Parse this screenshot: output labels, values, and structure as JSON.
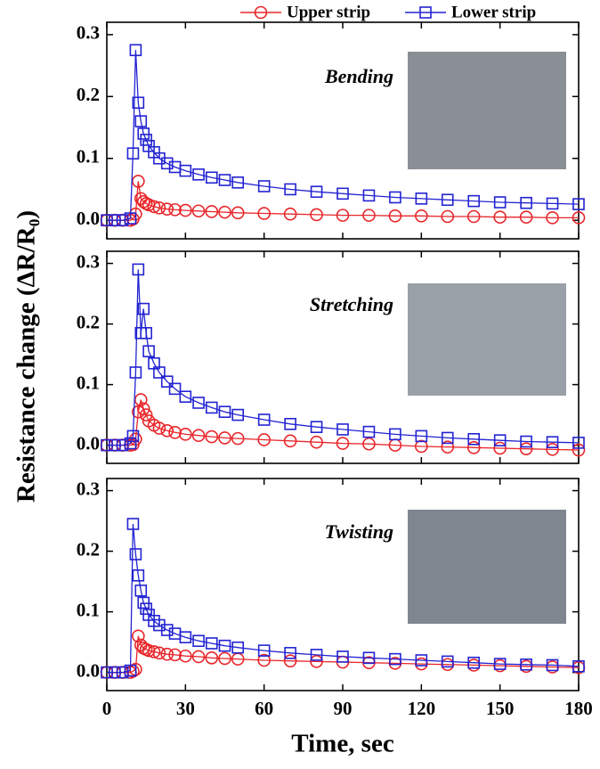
{
  "chart_data": [
    {
      "type": "line",
      "annotation": "Bending",
      "x": [
        0,
        3,
        6,
        9,
        10,
        11,
        12,
        13,
        14,
        15,
        16,
        18,
        20,
        23,
        26,
        30,
        35,
        40,
        45,
        50,
        60,
        70,
        80,
        90,
        100,
        110,
        120,
        130,
        140,
        150,
        160,
        170,
        180
      ],
      "series": [
        {
          "name": "Upper strip",
          "color": "#e8262a",
          "marker": "circle",
          "values": [
            0,
            0,
            0,
            0,
            0.002,
            0.01,
            0.063,
            0.035,
            0.03,
            0.027,
            0.025,
            0.022,
            0.02,
            0.018,
            0.017,
            0.016,
            0.015,
            0.014,
            0.013,
            0.012,
            0.011,
            0.01,
            0.009,
            0.008,
            0.008,
            0.007,
            0.007,
            0.006,
            0.006,
            0.005,
            0.005,
            0.004,
            0.004
          ]
        },
        {
          "name": "Lower strip",
          "color": "#2323d2",
          "marker": "square",
          "values": [
            0,
            0,
            0,
            0.003,
            0.108,
            0.275,
            0.19,
            0.16,
            0.14,
            0.13,
            0.12,
            0.11,
            0.1,
            0.092,
            0.086,
            0.08,
            0.074,
            0.069,
            0.065,
            0.061,
            0.055,
            0.05,
            0.046,
            0.043,
            0.04,
            0.037,
            0.035,
            0.033,
            0.031,
            0.029,
            0.028,
            0.027,
            0.026
          ]
        }
      ],
      "xlim": [
        0,
        180
      ],
      "ylim": [
        -0.03,
        0.32
      ],
      "yticks": [
        {
          "value": 0,
          "label": "0.0"
        },
        0.1,
        0.2,
        0.3
      ]
    },
    {
      "type": "line",
      "annotation": "Stretching",
      "ylabel": "Resistance change (ΔR/R₀)",
      "x": [
        0,
        3,
        6,
        9,
        10,
        11,
        12,
        13,
        14,
        15,
        16,
        18,
        20,
        23,
        26,
        30,
        35,
        40,
        45,
        50,
        60,
        70,
        80,
        90,
        100,
        110,
        120,
        130,
        140,
        150,
        160,
        170,
        180
      ],
      "series": [
        {
          "name": "Upper strip",
          "color": "#e8262a",
          "marker": "circle",
          "values": [
            0,
            0,
            0,
            0,
            0.001,
            0.01,
            0.055,
            0.075,
            0.06,
            0.05,
            0.04,
            0.033,
            0.028,
            0.024,
            0.021,
            0.018,
            0.016,
            0.014,
            0.012,
            0.011,
            0.009,
            0.007,
            0.005,
            0.003,
            0.002,
            0,
            -0.002,
            -0.003,
            -0.004,
            -0.005,
            -0.006,
            -0.007,
            -0.008
          ]
        },
        {
          "name": "Lower strip",
          "color": "#2323d2",
          "marker": "square",
          "values": [
            0,
            0,
            0,
            0.003,
            0.015,
            0.12,
            0.29,
            0.185,
            0.225,
            0.185,
            0.155,
            0.135,
            0.12,
            0.105,
            0.093,
            0.08,
            0.07,
            0.062,
            0.055,
            0.05,
            0.042,
            0.035,
            0.03,
            0.026,
            0.022,
            0.018,
            0.015,
            0.012,
            0.01,
            0.008,
            0.006,
            0.005,
            0.004
          ]
        }
      ],
      "xlim": [
        0,
        180
      ],
      "ylim": [
        -0.03,
        0.32
      ],
      "yticks": [
        {
          "value": 0,
          "label": "0.0"
        },
        0.1,
        0.2,
        0.3
      ]
    },
    {
      "type": "line",
      "annotation": "Twisting",
      "xlabel": "Time, sec",
      "x": [
        0,
        3,
        6,
        9,
        10,
        11,
        12,
        13,
        14,
        15,
        16,
        18,
        20,
        23,
        26,
        30,
        35,
        40,
        45,
        50,
        60,
        70,
        80,
        90,
        100,
        110,
        120,
        130,
        140,
        150,
        160,
        170,
        180
      ],
      "series": [
        {
          "name": "Upper strip",
          "color": "#e8262a",
          "marker": "circle",
          "values": [
            0,
            0,
            0,
            0,
            0.002,
            0.005,
            0.06,
            0.045,
            0.04,
            0.038,
            0.036,
            0.034,
            0.032,
            0.03,
            0.029,
            0.027,
            0.026,
            0.024,
            0.023,
            0.022,
            0.02,
            0.019,
            0.018,
            0.017,
            0.016,
            0.015,
            0.014,
            0.013,
            0.012,
            0.011,
            0.01,
            0.009,
            0.008
          ]
        },
        {
          "name": "Lower strip",
          "color": "#2323d2",
          "marker": "square",
          "values": [
            0,
            0,
            0,
            0.003,
            0.245,
            0.195,
            0.16,
            0.135,
            0.115,
            0.105,
            0.095,
            0.085,
            0.078,
            0.07,
            0.064,
            0.058,
            0.052,
            0.048,
            0.044,
            0.041,
            0.036,
            0.032,
            0.029,
            0.026,
            0.024,
            0.022,
            0.02,
            0.018,
            0.016,
            0.014,
            0.013,
            0.012,
            0.01
          ]
        }
      ],
      "xlim": [
        0,
        180
      ],
      "ylim": [
        -0.03,
        0.32
      ],
      "yticks": [
        {
          "value": 0,
          "label": "0.0"
        },
        0.1,
        0.2,
        0.3
      ],
      "xticks": [
        0,
        30,
        60,
        90,
        120,
        150,
        180
      ]
    }
  ]
}
